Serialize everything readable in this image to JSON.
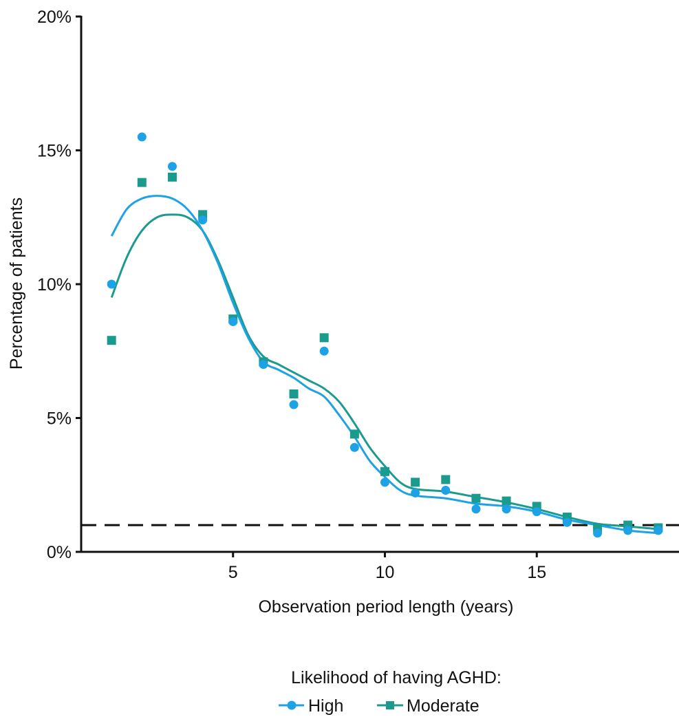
{
  "chart_data": {
    "type": "scatter",
    "xlabel": "Observation period length (years)",
    "ylabel": "Percentage of patients",
    "xlim": [
      0,
      20
    ],
    "ylim": [
      0,
      20
    ],
    "x_ticks": [
      5,
      10,
      15
    ],
    "x_tick_labels": [
      "5",
      "10",
      "15"
    ],
    "y_ticks": [
      0,
      5,
      10,
      15,
      20
    ],
    "y_tick_labels": [
      "0%",
      "5%",
      "10%",
      "15%",
      "20%"
    ],
    "reference_line": {
      "y": 1,
      "style": "dashed",
      "color": "#111111"
    },
    "grid": false,
    "legend": {
      "title": "Likelihood of having AGHD:",
      "position": "bottom-center"
    },
    "series": [
      {
        "name": "High",
        "marker": "circle",
        "color": "#1ea2e6",
        "x": [
          1,
          2,
          3,
          4,
          5,
          6,
          7,
          8,
          9,
          10,
          11,
          12,
          13,
          14,
          15,
          16,
          17,
          18,
          19
        ],
        "values": [
          10.0,
          15.5,
          14.4,
          12.4,
          8.6,
          7.0,
          5.5,
          7.5,
          3.9,
          2.6,
          2.2,
          2.3,
          1.6,
          1.6,
          1.5,
          1.1,
          0.7,
          0.8,
          0.8
        ],
        "trend_x": [
          1,
          1.5,
          2,
          2.5,
          3,
          3.5,
          4,
          4.5,
          5,
          5.5,
          6,
          6.5,
          7,
          7.5,
          8,
          8.5,
          9,
          9.5,
          10,
          10.5,
          11,
          12,
          13,
          14,
          15,
          16,
          17,
          18,
          19
        ],
        "trend_y": [
          11.8,
          12.8,
          13.2,
          13.3,
          13.2,
          12.8,
          12.0,
          10.8,
          9.3,
          8.0,
          7.1,
          6.8,
          6.5,
          6.1,
          5.8,
          5.1,
          4.3,
          3.4,
          2.8,
          2.3,
          2.1,
          2.0,
          1.8,
          1.7,
          1.5,
          1.2,
          1.0,
          0.8,
          0.7
        ]
      },
      {
        "name": "Moderate",
        "marker": "square",
        "color": "#1b9a8e",
        "x": [
          1,
          2,
          3,
          4,
          5,
          6,
          7,
          8,
          9,
          10,
          11,
          12,
          13,
          14,
          15,
          16,
          17,
          18,
          19
        ],
        "values": [
          7.9,
          13.8,
          14.0,
          12.6,
          8.7,
          7.1,
          5.9,
          8.0,
          4.4,
          3.0,
          2.6,
          2.7,
          2.0,
          1.9,
          1.7,
          1.3,
          0.9,
          1.0,
          0.9
        ],
        "trend_x": [
          1,
          1.5,
          2,
          2.5,
          3,
          3.5,
          4,
          4.5,
          5,
          5.5,
          6,
          6.5,
          7,
          7.5,
          8,
          8.5,
          9,
          9.5,
          10,
          10.5,
          11,
          12,
          13,
          14,
          15,
          16,
          17,
          18,
          19
        ],
        "trend_y": [
          9.5,
          11.0,
          12.0,
          12.5,
          12.6,
          12.5,
          12.0,
          10.9,
          9.5,
          8.1,
          7.3,
          7.0,
          6.7,
          6.4,
          6.1,
          5.6,
          4.8,
          3.9,
          3.2,
          2.6,
          2.35,
          2.25,
          2.05,
          1.85,
          1.6,
          1.3,
          1.05,
          0.95,
          0.85
        ]
      }
    ]
  }
}
